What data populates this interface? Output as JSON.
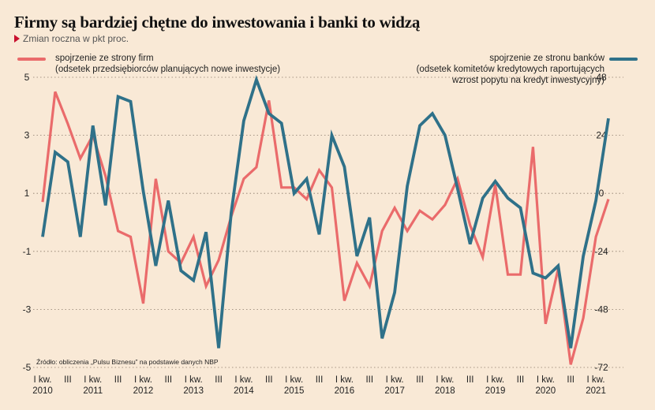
{
  "header": {
    "title": "Firmy są bardziej chętne do inwestowania i banki to widzą",
    "subtitle": "Zmian roczna w pkt proc."
  },
  "legend": {
    "left": {
      "line1": "spojrzenie ze strony firm",
      "line2": "(odsetek przedsiębiorców planujących nowe inwestycje)"
    },
    "right": {
      "line1": "spojrzenie ze stronu banków",
      "line2": "(odsetek komitetów kredytowych raportujących",
      "line3": "wzrost popytu na kredyt inwestycyjny)"
    }
  },
  "source": "Źródło: obliczenia „Pulsu Biznesu” na podstawie danych NBP",
  "colors": {
    "firms": "#ea6b6b",
    "banks": "#2f7189",
    "background": "#f9e9d6"
  },
  "chart_data": {
    "type": "line",
    "x_quarters": [
      "2010Q1",
      "2010Q2",
      "2010Q3",
      "2010Q4",
      "2011Q1",
      "2011Q2",
      "2011Q3",
      "2011Q4",
      "2012Q1",
      "2012Q2",
      "2012Q3",
      "2012Q4",
      "2013Q1",
      "2013Q2",
      "2013Q3",
      "2013Q4",
      "2014Q1",
      "2014Q2",
      "2014Q3",
      "2014Q4",
      "2015Q1",
      "2015Q2",
      "2015Q3",
      "2015Q4",
      "2016Q1",
      "2016Q2",
      "2016Q3",
      "2016Q4",
      "2017Q1",
      "2017Q2",
      "2017Q3",
      "2017Q4",
      "2018Q1",
      "2018Q2",
      "2018Q3",
      "2018Q4",
      "2019Q1",
      "2019Q2",
      "2019Q3",
      "2019Q4",
      "2020Q1",
      "2020Q2",
      "2020Q3",
      "2020Q4",
      "2021Q1",
      "2021Q2"
    ],
    "x_tick_labels": [
      {
        "q": 0,
        "line1": "I kw.",
        "line2": "2010"
      },
      {
        "q": 2,
        "line1": "III",
        "line2": ""
      },
      {
        "q": 4,
        "line1": "I kw.",
        "line2": "2011"
      },
      {
        "q": 6,
        "line1": "III",
        "line2": ""
      },
      {
        "q": 8,
        "line1": "I kw.",
        "line2": "2012"
      },
      {
        "q": 10,
        "line1": "III",
        "line2": ""
      },
      {
        "q": 12,
        "line1": "I kw.",
        "line2": "2013"
      },
      {
        "q": 14,
        "line1": "III",
        "line2": ""
      },
      {
        "q": 16,
        "line1": "I kw.",
        "line2": "2014"
      },
      {
        "q": 18,
        "line1": "III",
        "line2": ""
      },
      {
        "q": 20,
        "line1": "I kw.",
        "line2": "2015"
      },
      {
        "q": 22,
        "line1": "III",
        "line2": ""
      },
      {
        "q": 24,
        "line1": "I kw.",
        "line2": "2016"
      },
      {
        "q": 26,
        "line1": "III",
        "line2": ""
      },
      {
        "q": 28,
        "line1": "I kw.",
        "line2": "2017"
      },
      {
        "q": 30,
        "line1": "III",
        "line2": ""
      },
      {
        "q": 32,
        "line1": "I kw.",
        "line2": "2018"
      },
      {
        "q": 34,
        "line1": "III",
        "line2": ""
      },
      {
        "q": 36,
        "line1": "I kw.",
        "line2": "2019"
      },
      {
        "q": 38,
        "line1": "III",
        "line2": ""
      },
      {
        "q": 40,
        "line1": "I kw.",
        "line2": "2020"
      },
      {
        "q": 42,
        "line1": "III",
        "line2": ""
      },
      {
        "q": 44,
        "line1": "I kw.",
        "line2": "2021"
      }
    ],
    "y_left": {
      "ticks": [
        "5",
        "3",
        "1",
        "-1",
        "-3",
        "-5"
      ],
      "ylim": [
        -5,
        5
      ]
    },
    "y_right": {
      "ticks": [
        "48",
        "24",
        "0",
        "-24",
        "-48",
        "-72"
      ],
      "ylim": [
        -72,
        48
      ]
    },
    "series": [
      {
        "name": "spojrzenie ze strony firm",
        "axis": "left",
        "values": [
          0.7,
          4.5,
          3.4,
          2.2,
          3.0,
          1.6,
          -0.3,
          -0.5,
          -2.8,
          1.5,
          -1.0,
          -1.4,
          -0.5,
          -2.2,
          -1.3,
          0.2,
          1.5,
          1.9,
          4.2,
          1.2,
          1.2,
          0.8,
          1.8,
          1.2,
          -2.7,
          -1.4,
          -2.2,
          -0.3,
          0.5,
          -0.3,
          0.4,
          0.1,
          0.6,
          1.5,
          -0.1,
          -1.2,
          1.3,
          -1.8,
          -1.8,
          2.6,
          -3.5,
          -1.6,
          -4.9,
          -3.3,
          -0.5,
          0.8
        ]
      },
      {
        "name": "spojrzenie ze stronu banków",
        "axis": "right",
        "values": [
          -18,
          17,
          13,
          -18,
          28,
          -5,
          40,
          38,
          1,
          -30,
          -3,
          -32,
          -36,
          -16,
          -64,
          -8,
          30,
          47,
          33,
          29,
          0,
          6,
          -17,
          24,
          11,
          -26,
          -10,
          -60,
          -41,
          3,
          28,
          33,
          24,
          2,
          -21,
          -2,
          5,
          -2,
          -6,
          -33,
          -35,
          -30,
          -64,
          -26,
          -3,
          31
        ]
      }
    ]
  }
}
